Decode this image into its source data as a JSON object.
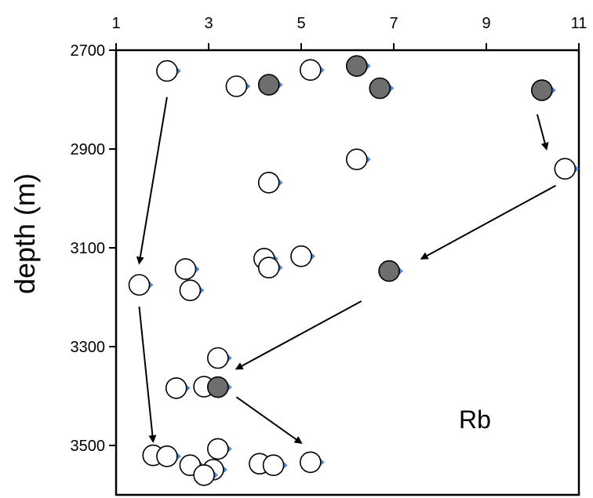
{
  "chart_data": {
    "type": "scatter",
    "title": "",
    "annotation": "Rb",
    "xlabel": "",
    "ylabel": "depth (m)",
    "x_axis_position": "top",
    "y_axis_inverted": true,
    "xlim": [
      1,
      11
    ],
    "ylim": [
      2700,
      3600
    ],
    "xticks": [
      "1",
      "3",
      "5",
      "7",
      "9",
      "11"
    ],
    "yticks": [
      "2700",
      "2900",
      "3100",
      "3300",
      "3500"
    ],
    "grid": false,
    "legend": "none",
    "colors": {
      "open": "#ffffff",
      "filled": "#6e6e6e",
      "edge": "#000000",
      "shadow": "#4f86d6"
    },
    "series": [
      {
        "marker": "open",
        "points": [
          {
            "x": 2.1,
            "y": 2742
          },
          {
            "x": 3.6,
            "y": 2773
          },
          {
            "x": 5.2,
            "y": 2740
          },
          {
            "x": 6.2,
            "y": 2921
          },
          {
            "x": 4.3,
            "y": 2968
          },
          {
            "x": 10.7,
            "y": 2940
          },
          {
            "x": 4.2,
            "y": 3122
          },
          {
            "x": 4.3,
            "y": 3140
          },
          {
            "x": 5.0,
            "y": 3117
          },
          {
            "x": 2.5,
            "y": 3143
          },
          {
            "x": 2.6,
            "y": 3186
          },
          {
            "x": 1.5,
            "y": 3175
          },
          {
            "x": 3.2,
            "y": 3323
          },
          {
            "x": 2.3,
            "y": 3384
          },
          {
            "x": 2.9,
            "y": 3381
          },
          {
            "x": 3.2,
            "y": 3507
          },
          {
            "x": 1.8,
            "y": 3520
          },
          {
            "x": 2.1,
            "y": 3522
          },
          {
            "x": 2.6,
            "y": 3540
          },
          {
            "x": 3.1,
            "y": 3549
          },
          {
            "x": 2.9,
            "y": 3560
          },
          {
            "x": 4.1,
            "y": 3537
          },
          {
            "x": 4.4,
            "y": 3540
          },
          {
            "x": 5.2,
            "y": 3534
          }
        ]
      },
      {
        "marker": "filled",
        "points": [
          {
            "x": 4.3,
            "y": 2770
          },
          {
            "x": 6.2,
            "y": 2732
          },
          {
            "x": 6.7,
            "y": 2777
          },
          {
            "x": 10.2,
            "y": 2781
          },
          {
            "x": 6.9,
            "y": 3147
          },
          {
            "x": 3.2,
            "y": 3382
          }
        ]
      }
    ],
    "arrows": [
      {
        "from": [
          2.1,
          2795
        ],
        "to": [
          1.5,
          3131
        ]
      },
      {
        "from": [
          10.1,
          2830
        ],
        "to": [
          10.3,
          2900
        ]
      },
      {
        "from": [
          10.5,
          2974
        ],
        "to": [
          7.6,
          3122
        ]
      },
      {
        "from": [
          6.3,
          3208
        ],
        "to": [
          3.6,
          3345
        ]
      },
      {
        "from": [
          1.5,
          3219
        ],
        "to": [
          1.8,
          3492
        ]
      },
      {
        "from": [
          3.6,
          3402
        ],
        "to": [
          5.0,
          3495
        ]
      }
    ]
  }
}
